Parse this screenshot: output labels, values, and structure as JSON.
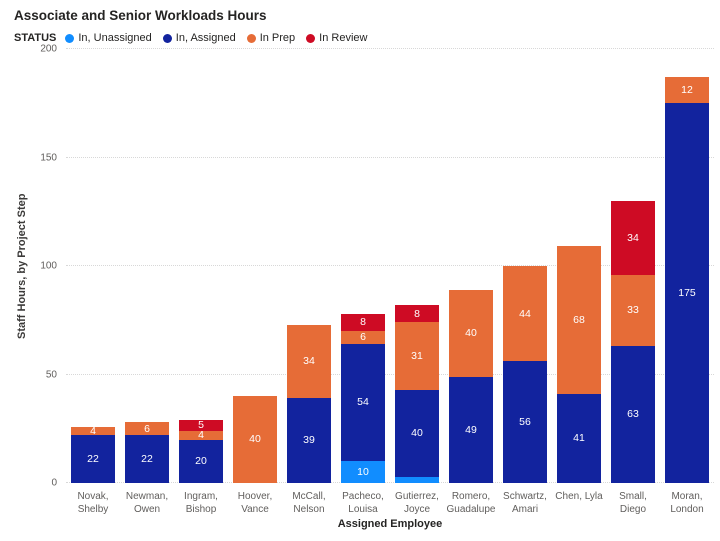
{
  "title": "Associate and Senior Workloads Hours",
  "legend": {
    "title": "STATUS"
  },
  "chart_data": {
    "type": "bar",
    "stacked": true,
    "title": "Associate and Senior Workloads Hours",
    "legend_title": "STATUS",
    "legend_position": "top",
    "grid": "horizontal dotted",
    "xlabel": "Assigned Employee",
    "ylabel": "Staff Hours, by Project Step",
    "ylim": [
      0,
      200
    ],
    "yticks": [
      0,
      50,
      100,
      150,
      200
    ],
    "label_min_value_shown": 4,
    "categories": [
      "Novak, Shelby",
      "Newman, Owen",
      "Ingram, Bishop",
      "Hoover, Vance",
      "McCall, Nelson",
      "Pacheco, Louisa",
      "Gutierrez, Joyce",
      "Romero, Guadalupe",
      "Schwartz, Amari",
      "Chen, Lyla",
      "Small, Diego",
      "Moran, London"
    ],
    "series": [
      {
        "name": "In, Unassigned",
        "color": "#118DFF",
        "values": [
          0,
          0,
          0,
          0,
          0,
          10,
          3,
          0,
          0,
          0,
          0,
          0
        ]
      },
      {
        "name": "In, Assigned",
        "color": "#12239E",
        "values": [
          22,
          22,
          20,
          0,
          39,
          54,
          40,
          49,
          56,
          41,
          63,
          175
        ]
      },
      {
        "name": "In Prep",
        "color": "#E66C37",
        "values": [
          4,
          6,
          4,
          40,
          34,
          6,
          31,
          40,
          44,
          68,
          33,
          12
        ]
      },
      {
        "name": "In  Review",
        "color": "#CE0B24",
        "values": [
          0,
          0,
          5,
          0,
          0,
          8,
          8,
          0,
          0,
          0,
          34,
          0
        ]
      }
    ],
    "totals": [
      26,
      28,
      29,
      40,
      73,
      78,
      82,
      89,
      100,
      109,
      130,
      187
    ]
  }
}
